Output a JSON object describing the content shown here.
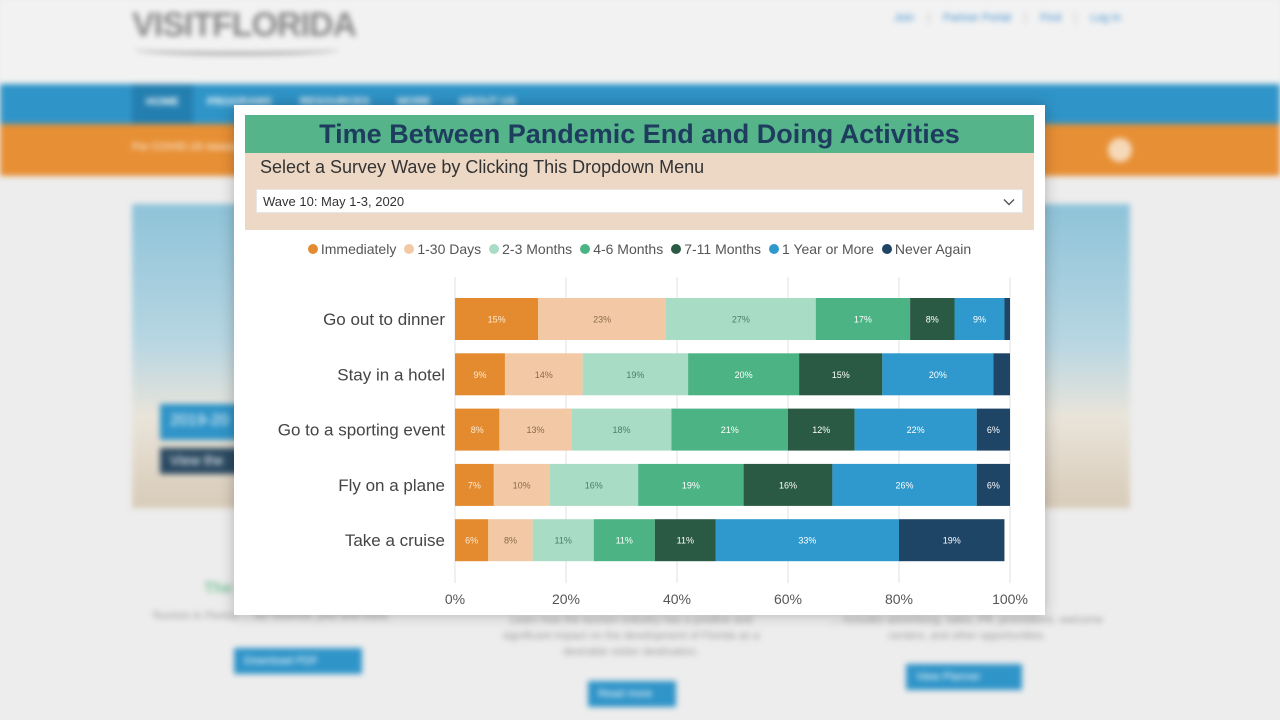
{
  "background_site": {
    "logo": "VISITFLORIDA",
    "top_links": [
      "Join",
      "Partner Portal",
      "Find",
      "Log In"
    ],
    "nav": [
      "HOME",
      "PROGRAMS",
      "RESOURCES",
      "MORE",
      "ABOUT US"
    ],
    "alert_text": "For COVID-19 resources",
    "hero_badge": "2019-20",
    "hero_button": "View the",
    "col_title": "The",
    "col_texts": [
      "Tourism in Florida ... tax revenue, jobs and more.",
      "Learn how the tourism industry has a positive and significant impact on the development of Florida as a desirable visitor destination.",
      "... includes advertising, sales, PR, promotions, welcome centers, and other opportunities."
    ],
    "buttons": [
      "Download PDF",
      "Read more",
      "View Planner"
    ]
  },
  "panel": {
    "title": "Time Between Pandemic End and Doing Activities",
    "subtitle": "Select a Survey Wave by Clicking This Dropdown Menu",
    "dropdown_value": "Wave 10: May 1-3, 2020"
  },
  "chart_data": {
    "type": "bar",
    "orientation": "horizontal-stacked",
    "categories": [
      "Go out to dinner",
      "Stay in a hotel",
      "Go to a sporting event",
      "Fly on a plane",
      "Take a cruise"
    ],
    "series": [
      {
        "name": "Immediately",
        "color": "#e48b2f",
        "label_color": "#fde9d4",
        "values": [
          15,
          9,
          8,
          7,
          6
        ],
        "labels": [
          "15%",
          "9%",
          "8%",
          "7%",
          "6%"
        ]
      },
      {
        "name": "1-30 Days",
        "color": "#f2c9a4",
        "label_color": "#8a6a4c",
        "values": [
          23,
          14,
          13,
          10,
          8
        ],
        "labels": [
          "23%",
          "14%",
          "13%",
          "10%",
          "8%"
        ]
      },
      {
        "name": "2-3 Months",
        "color": "#a9dcc5",
        "label_color": "#4d7d68",
        "values": [
          27,
          19,
          18,
          16,
          11
        ],
        "labels": [
          "27%",
          "19%",
          "18%",
          "16%",
          "11%"
        ]
      },
      {
        "name": "4-6 Months",
        "color": "#4cb384",
        "label_color": "#ffffff",
        "values": [
          17,
          20,
          21,
          19,
          11
        ],
        "labels": [
          "17%",
          "20%",
          "21%",
          "19%",
          "11%"
        ]
      },
      {
        "name": "7-11 Months",
        "color": "#2a5a44",
        "label_color": "#ffffff",
        "values": [
          8,
          15,
          12,
          16,
          11
        ],
        "labels": [
          "8%",
          "15%",
          "12%",
          "16%",
          "11%"
        ]
      },
      {
        "name": "1 Year or More",
        "color": "#2f99cd",
        "label_color": "#ffffff",
        "values": [
          9,
          20,
          22,
          26,
          33
        ],
        "labels": [
          "9%",
          "20%",
          "22%",
          "26%",
          "33%"
        ]
      },
      {
        "name": "Never Again",
        "color": "#1e4466",
        "label_color": "#ffffff",
        "values": [
          1,
          3,
          6,
          6,
          19
        ],
        "labels": [
          "",
          "",
          "6%",
          "6%",
          "19%"
        ]
      }
    ],
    "xlim": [
      0,
      100
    ],
    "xticks": [
      "0%",
      "20%",
      "40%",
      "60%",
      "80%",
      "100%"
    ],
    "grid": true,
    "legend": "top-center"
  }
}
